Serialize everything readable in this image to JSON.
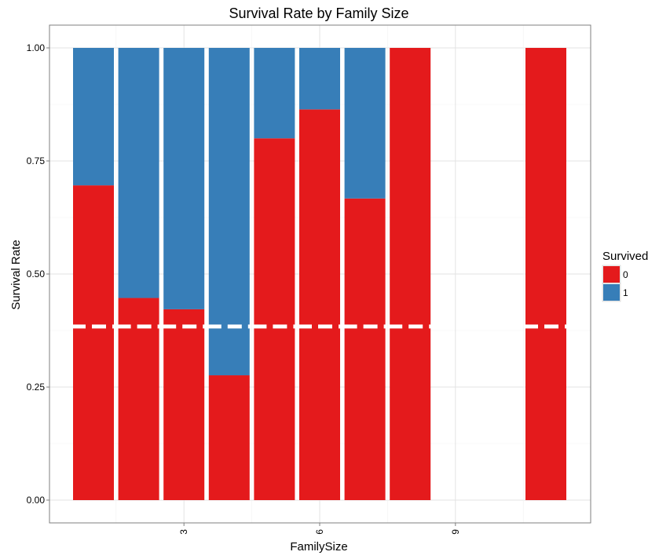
{
  "chart_data": {
    "type": "bar",
    "stacked": true,
    "position": "fill",
    "title": "Survival Rate by Family Size",
    "xlabel": "FamilySize",
    "ylabel": "Survival Rate",
    "x_tick_labels": [
      "3",
      "6",
      "9"
    ],
    "y_tick_labels": [
      "0.00",
      "0.25",
      "0.50",
      "0.75",
      "1.00"
    ],
    "ylim": [
      0,
      1
    ],
    "grid": true,
    "legend": {
      "title": "Survived",
      "placement": "right",
      "entries": [
        {
          "label": "0",
          "color": "#e41a1c"
        },
        {
          "label": "1",
          "color": "#377eb8"
        }
      ]
    },
    "categories": [
      1,
      2,
      3,
      4,
      5,
      6,
      7,
      8,
      11
    ],
    "series": [
      {
        "name": "0",
        "color": "#e41a1c",
        "values": [
          0.696,
          0.447,
          0.422,
          0.276,
          0.8,
          0.864,
          0.667,
          1.0,
          1.0
        ]
      },
      {
        "name": "1",
        "color": "#377eb8",
        "values": [
          0.304,
          0.553,
          0.578,
          0.724,
          0.2,
          0.136,
          0.333,
          0.0,
          0.0
        ]
      }
    ],
    "reference_line": {
      "y": 0.384,
      "style": "dashed",
      "color": "#ffffff"
    }
  }
}
